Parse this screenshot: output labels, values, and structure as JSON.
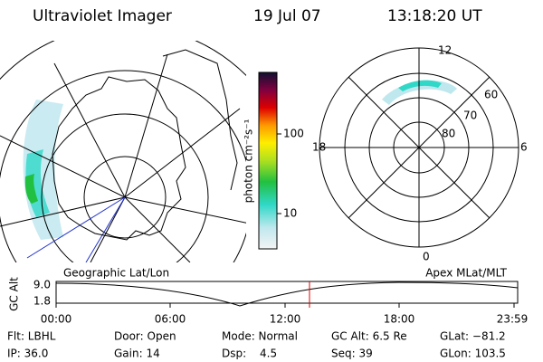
{
  "header": {
    "title": "Ultraviolet Imager",
    "date": "19 Jul 07",
    "time": "13:18:20 UT"
  },
  "colorbar": {
    "label": "photon cm⁻²s⁻¹",
    "ticks": [
      "100",
      "10"
    ]
  },
  "polar": {
    "mlt": [
      "12",
      "18",
      "6",
      "0"
    ],
    "mlat": [
      "60",
      "70",
      "80"
    ]
  },
  "timeline": {
    "left_title": "Geographic Lat/Lon",
    "right_title": "Apex MLat/MLT",
    "axis_label": "GC Alt",
    "y_ticks": [
      "9.0",
      "1.8"
    ],
    "x_ticks": [
      "00:00",
      "06:00",
      "12:00",
      "18:00",
      "23:59"
    ]
  },
  "footer": {
    "row1": [
      "Flt: LBHL",
      "Door: Open",
      "Mode: Normal",
      "GC Alt: 6.5 Re",
      "GLat: −81.2"
    ],
    "row2": [
      "IP: 36.0",
      "Gain: 14",
      "Dsp:",
      "4.5",
      "Seq: 39",
      "GLon: 103.5"
    ]
  }
}
